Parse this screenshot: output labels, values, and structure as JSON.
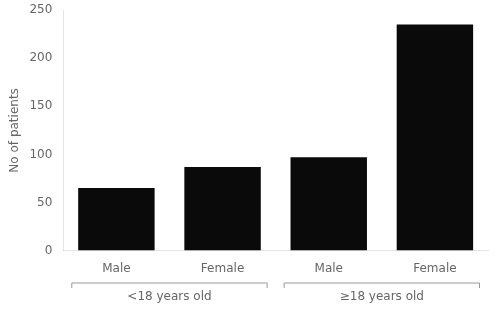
{
  "chart_data": {
    "type": "bar",
    "categories": [
      "Male",
      "Female",
      "Male",
      "Female"
    ],
    "groups": [
      "<18 years old",
      "<18 years old",
      "≥18 years old",
      "≥18 years old"
    ],
    "values": [
      65,
      87,
      97,
      235
    ],
    "color": "#0a0a0a",
    "ylabel": "No of patients",
    "ylim": [
      0,
      250
    ],
    "yticks": [
      0,
      50,
      100,
      150,
      200,
      250
    ],
    "grid": false
  }
}
